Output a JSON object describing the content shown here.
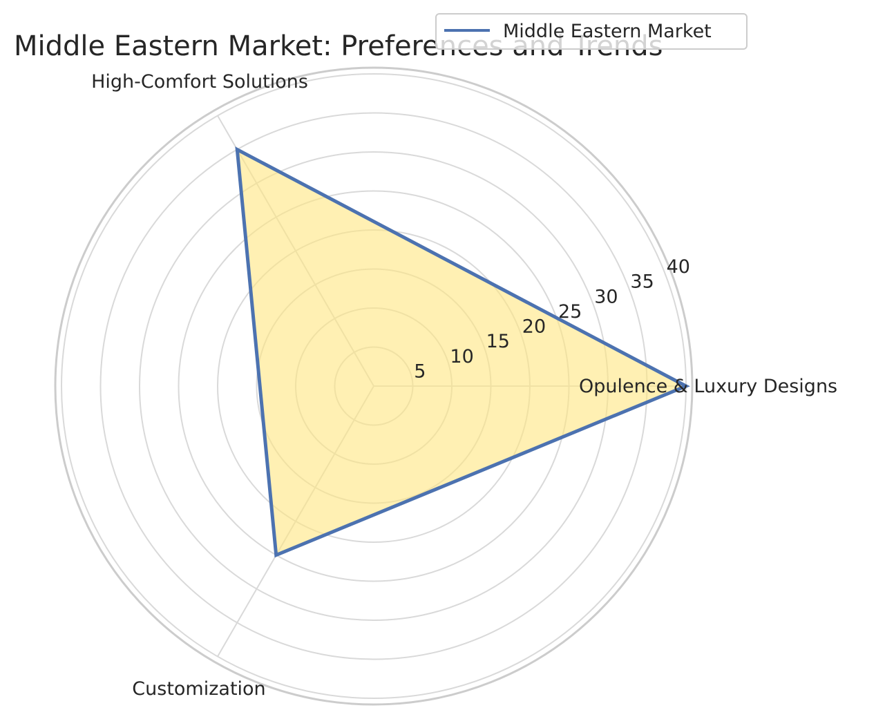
{
  "chart_data": {
    "type": "radar",
    "title": "Middle Eastern Market: Preferences and Trends",
    "categories": [
      "Opulence & Luxury Designs",
      "High-Comfort Solutions",
      "Customization"
    ],
    "series": [
      {
        "name": "Middle Eastern Market",
        "values": [
          40,
          35,
          25
        ]
      }
    ],
    "rlim": [
      0,
      40
    ],
    "rticks": [
      5,
      10,
      15,
      20,
      25,
      30,
      35,
      40
    ],
    "grid": true,
    "legend_position": "top-right",
    "colors": {
      "line": "#4c72b0",
      "fill": "#ffe680",
      "grid": "#d9d9d9",
      "spine": "#cccccc"
    }
  }
}
